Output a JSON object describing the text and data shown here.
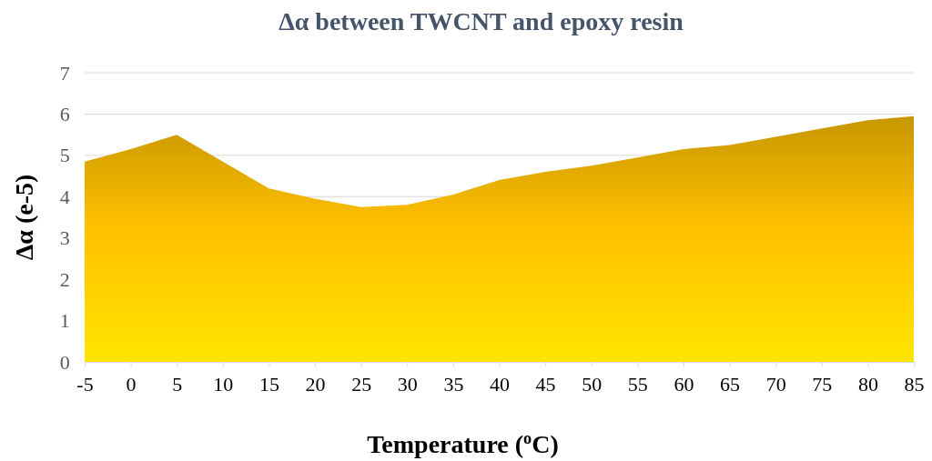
{
  "chart_data": {
    "type": "area",
    "title": "Δα between TWCNT and epoxy resin",
    "xlabel": "Temperature ($^{o}$C)",
    "ylabel": "Δα (e-5)",
    "x": [
      -5,
      0,
      5,
      10,
      15,
      20,
      25,
      30,
      35,
      40,
      45,
      50,
      55,
      60,
      65,
      70,
      75,
      80,
      85
    ],
    "series": [
      {
        "color": "#ffc000",
        "values": [
          4.85,
          5.15,
          5.5,
          4.85,
          4.2,
          3.95,
          3.75,
          3.8,
          4.05,
          4.4,
          4.6,
          4.75,
          4.95,
          5.15,
          5.25,
          5.45,
          5.65,
          5.85,
          5.95
        ]
      }
    ],
    "xlim": [
      -5,
      85
    ],
    "xticks": [
      -5,
      0,
      5,
      10,
      15,
      20,
      25,
      30,
      35,
      40,
      45,
      50,
      55,
      60,
      65,
      70,
      75,
      80,
      85
    ],
    "ylim": [
      0,
      7
    ],
    "yticks": [
      0,
      1,
      2,
      3,
      4,
      5,
      6,
      7
    ],
    "grid": "y"
  }
}
